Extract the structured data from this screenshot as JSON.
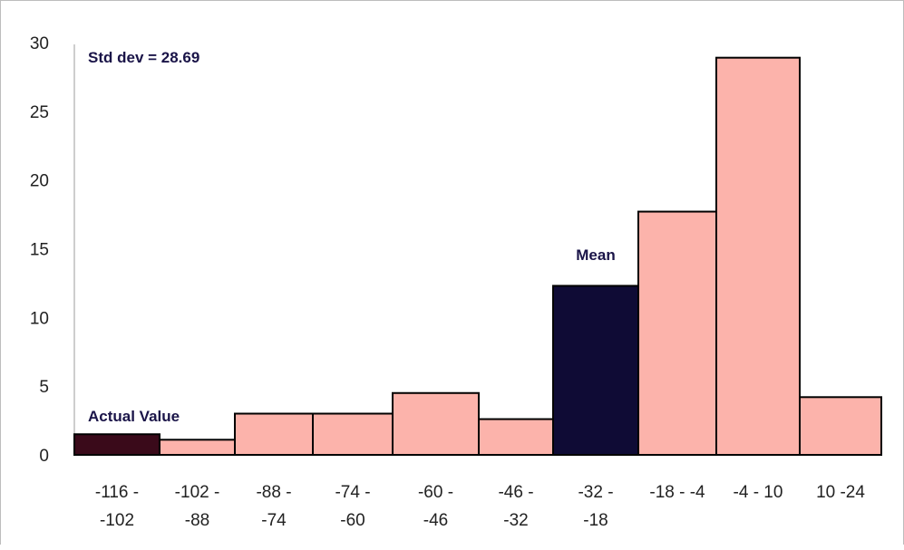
{
  "chart_data": {
    "type": "bar",
    "categories": [
      [
        "-116 -",
        "-102"
      ],
      [
        "-102 -",
        "-88"
      ],
      [
        "-88 -",
        "-74"
      ],
      [
        "-74 -",
        "-60"
      ],
      [
        "-60 -",
        "-46"
      ],
      [
        "-46 -",
        "-32"
      ],
      [
        "-32 -",
        "-18"
      ],
      [
        "-18 - -4"
      ],
      [
        "-4 - 10"
      ],
      [
        "10 -24"
      ]
    ],
    "values": [
      1.5,
      1.1,
      3.0,
      3.0,
      4.5,
      2.6,
      12.3,
      17.7,
      28.9,
      4.2
    ],
    "ylim": [
      0,
      30
    ],
    "yticks": [
      0,
      5,
      10,
      15,
      20,
      25,
      30
    ],
    "grid": false,
    "bar_colors": [
      "#3a0a1a",
      "#fcb3ab",
      "#fcb3ab",
      "#fcb3ab",
      "#fcb3ab",
      "#fcb3ab",
      "#0f0b35",
      "#fcb3ab",
      "#fcb3ab",
      "#fcb3ab"
    ],
    "annotations": {
      "std_dev": "Std dev = 28.69",
      "actual_value": "Actual Value",
      "mean": "Mean"
    }
  }
}
